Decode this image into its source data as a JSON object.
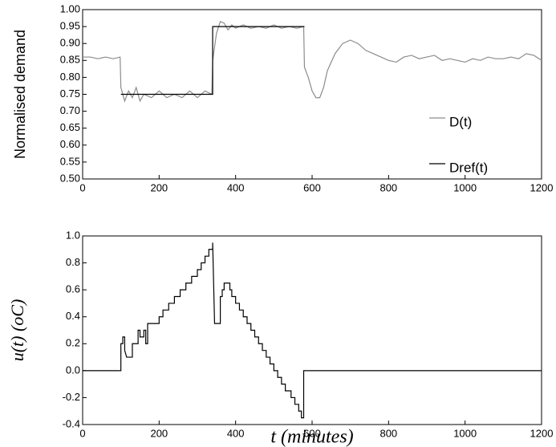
{
  "chart_data": [
    {
      "type": "line",
      "ylabel": "Normalised demand",
      "xlim": [
        0,
        1200
      ],
      "xticks": [
        0,
        200,
        400,
        600,
        800,
        1000,
        1200
      ],
      "ylim": [
        0.5,
        1.0
      ],
      "yticks": [
        {
          "value": 0.5,
          "label": "0.50"
        },
        {
          "value": 0.55,
          "label": "0.55"
        },
        {
          "value": 0.6,
          "label": "0.60"
        },
        {
          "value": 0.65,
          "label": "0.65"
        },
        {
          "value": 0.7,
          "label": "0.70"
        },
        {
          "value": 0.75,
          "label": "0.75"
        },
        {
          "value": 0.8,
          "label": "0.80"
        },
        {
          "value": 0.85,
          "label": "0.85"
        },
        {
          "value": 0.9,
          "label": "0.90"
        },
        {
          "value": 0.95,
          "label": "0.95"
        },
        {
          "value": 1.0,
          "label": "1.00"
        }
      ],
      "legend": "lower right",
      "series": [
        {
          "name": "D(t)",
          "color": "#8c8c8c",
          "x": [
            0,
            20,
            40,
            60,
            80,
            98,
            100,
            110,
            120,
            130,
            140,
            150,
            160,
            180,
            200,
            220,
            240,
            260,
            280,
            300,
            320,
            338,
            340,
            350,
            360,
            370,
            380,
            390,
            400,
            420,
            440,
            460,
            480,
            500,
            520,
            540,
            560,
            578,
            580,
            590,
            600,
            610,
            620,
            630,
            640,
            660,
            680,
            700,
            720,
            740,
            760,
            780,
            800,
            820,
            840,
            860,
            880,
            900,
            920,
            940,
            960,
            980,
            1000,
            1020,
            1040,
            1060,
            1080,
            1100,
            1120,
            1140,
            1160,
            1180,
            1200
          ],
          "values": [
            0.86,
            0.86,
            0.855,
            0.86,
            0.855,
            0.86,
            0.77,
            0.73,
            0.76,
            0.74,
            0.77,
            0.73,
            0.75,
            0.74,
            0.76,
            0.74,
            0.75,
            0.74,
            0.76,
            0.74,
            0.76,
            0.75,
            0.85,
            0.93,
            0.965,
            0.96,
            0.94,
            0.955,
            0.945,
            0.955,
            0.945,
            0.95,
            0.945,
            0.955,
            0.945,
            0.95,
            0.945,
            0.95,
            0.83,
            0.8,
            0.76,
            0.74,
            0.74,
            0.77,
            0.82,
            0.87,
            0.9,
            0.91,
            0.9,
            0.88,
            0.87,
            0.86,
            0.85,
            0.845,
            0.86,
            0.865,
            0.855,
            0.86,
            0.865,
            0.85,
            0.855,
            0.85,
            0.845,
            0.855,
            0.85,
            0.86,
            0.855,
            0.855,
            0.86,
            0.855,
            0.87,
            0.865,
            0.85
          ]
        },
        {
          "name": "Dref(t)",
          "color": "#000000",
          "x": [
            100,
            340,
            340,
            580
          ],
          "values": [
            0.75,
            0.75,
            0.95,
            0.95
          ]
        }
      ]
    },
    {
      "type": "line",
      "ylabel": "u(t) (oC)",
      "xlabel": "t (minutes)",
      "xlim": [
        0,
        1200
      ],
      "xticks": [
        0,
        200,
        400,
        600,
        800,
        1000,
        1200
      ],
      "ylim": [
        -0.4,
        1.0
      ],
      "yticks": [
        {
          "value": -0.4,
          "label": "-0.4"
        },
        {
          "value": -0.2,
          "label": "-0.2"
        },
        {
          "value": 0,
          "label": "0.0"
        },
        {
          "value": 0.2,
          "label": "0.2"
        },
        {
          "value": 0.4,
          "label": "0.4"
        },
        {
          "value": 0.6,
          "label": "0.6"
        },
        {
          "value": 0.8,
          "label": "0.8"
        },
        {
          "value": 1.0,
          "label": "1.0"
        }
      ],
      "series": [
        {
          "color": "#000000",
          "x": [
            0,
            100,
            100,
            105,
            105,
            110,
            110,
            115,
            125,
            130,
            130,
            145,
            145,
            150,
            150,
            160,
            160,
            165,
            165,
            170,
            170,
            200,
            200,
            210,
            210,
            225,
            225,
            240,
            240,
            255,
            255,
            270,
            270,
            285,
            285,
            300,
            300,
            310,
            310,
            320,
            320,
            330,
            330,
            340,
            340,
            345,
            355,
            360,
            360,
            365,
            365,
            370,
            370,
            385,
            385,
            390,
            390,
            400,
            400,
            410,
            410,
            420,
            420,
            430,
            430,
            440,
            440,
            450,
            450,
            460,
            460,
            470,
            470,
            480,
            480,
            490,
            490,
            500,
            500,
            510,
            510,
            520,
            520,
            530,
            530,
            545,
            545,
            555,
            555,
            565,
            565,
            572,
            572,
            578,
            578,
            1200
          ],
          "values": [
            0,
            0,
            0.2,
            0.2,
            0.25,
            0.25,
            0.15,
            0.1,
            0.1,
            0.1,
            0.2,
            0.2,
            0.3,
            0.3,
            0.25,
            0.25,
            0.3,
            0.3,
            0.2,
            0.2,
            0.35,
            0.35,
            0.4,
            0.4,
            0.45,
            0.45,
            0.5,
            0.5,
            0.55,
            0.55,
            0.6,
            0.6,
            0.65,
            0.65,
            0.7,
            0.7,
            0.75,
            0.75,
            0.8,
            0.8,
            0.85,
            0.85,
            0.9,
            0.9,
            0.95,
            0.35,
            0.35,
            0.35,
            0.55,
            0.55,
            0.6,
            0.6,
            0.65,
            0.65,
            0.6,
            0.6,
            0.55,
            0.55,
            0.5,
            0.5,
            0.45,
            0.45,
            0.4,
            0.4,
            0.35,
            0.35,
            0.3,
            0.3,
            0.25,
            0.25,
            0.2,
            0.2,
            0.15,
            0.15,
            0.1,
            0.1,
            0.05,
            0.05,
            0,
            0,
            -0.05,
            -0.05,
            -0.1,
            -0.1,
            -0.15,
            -0.15,
            -0.2,
            -0.2,
            -0.25,
            -0.25,
            -0.3,
            -0.3,
            -0.35,
            -0.35,
            0,
            0
          ]
        }
      ]
    }
  ]
}
